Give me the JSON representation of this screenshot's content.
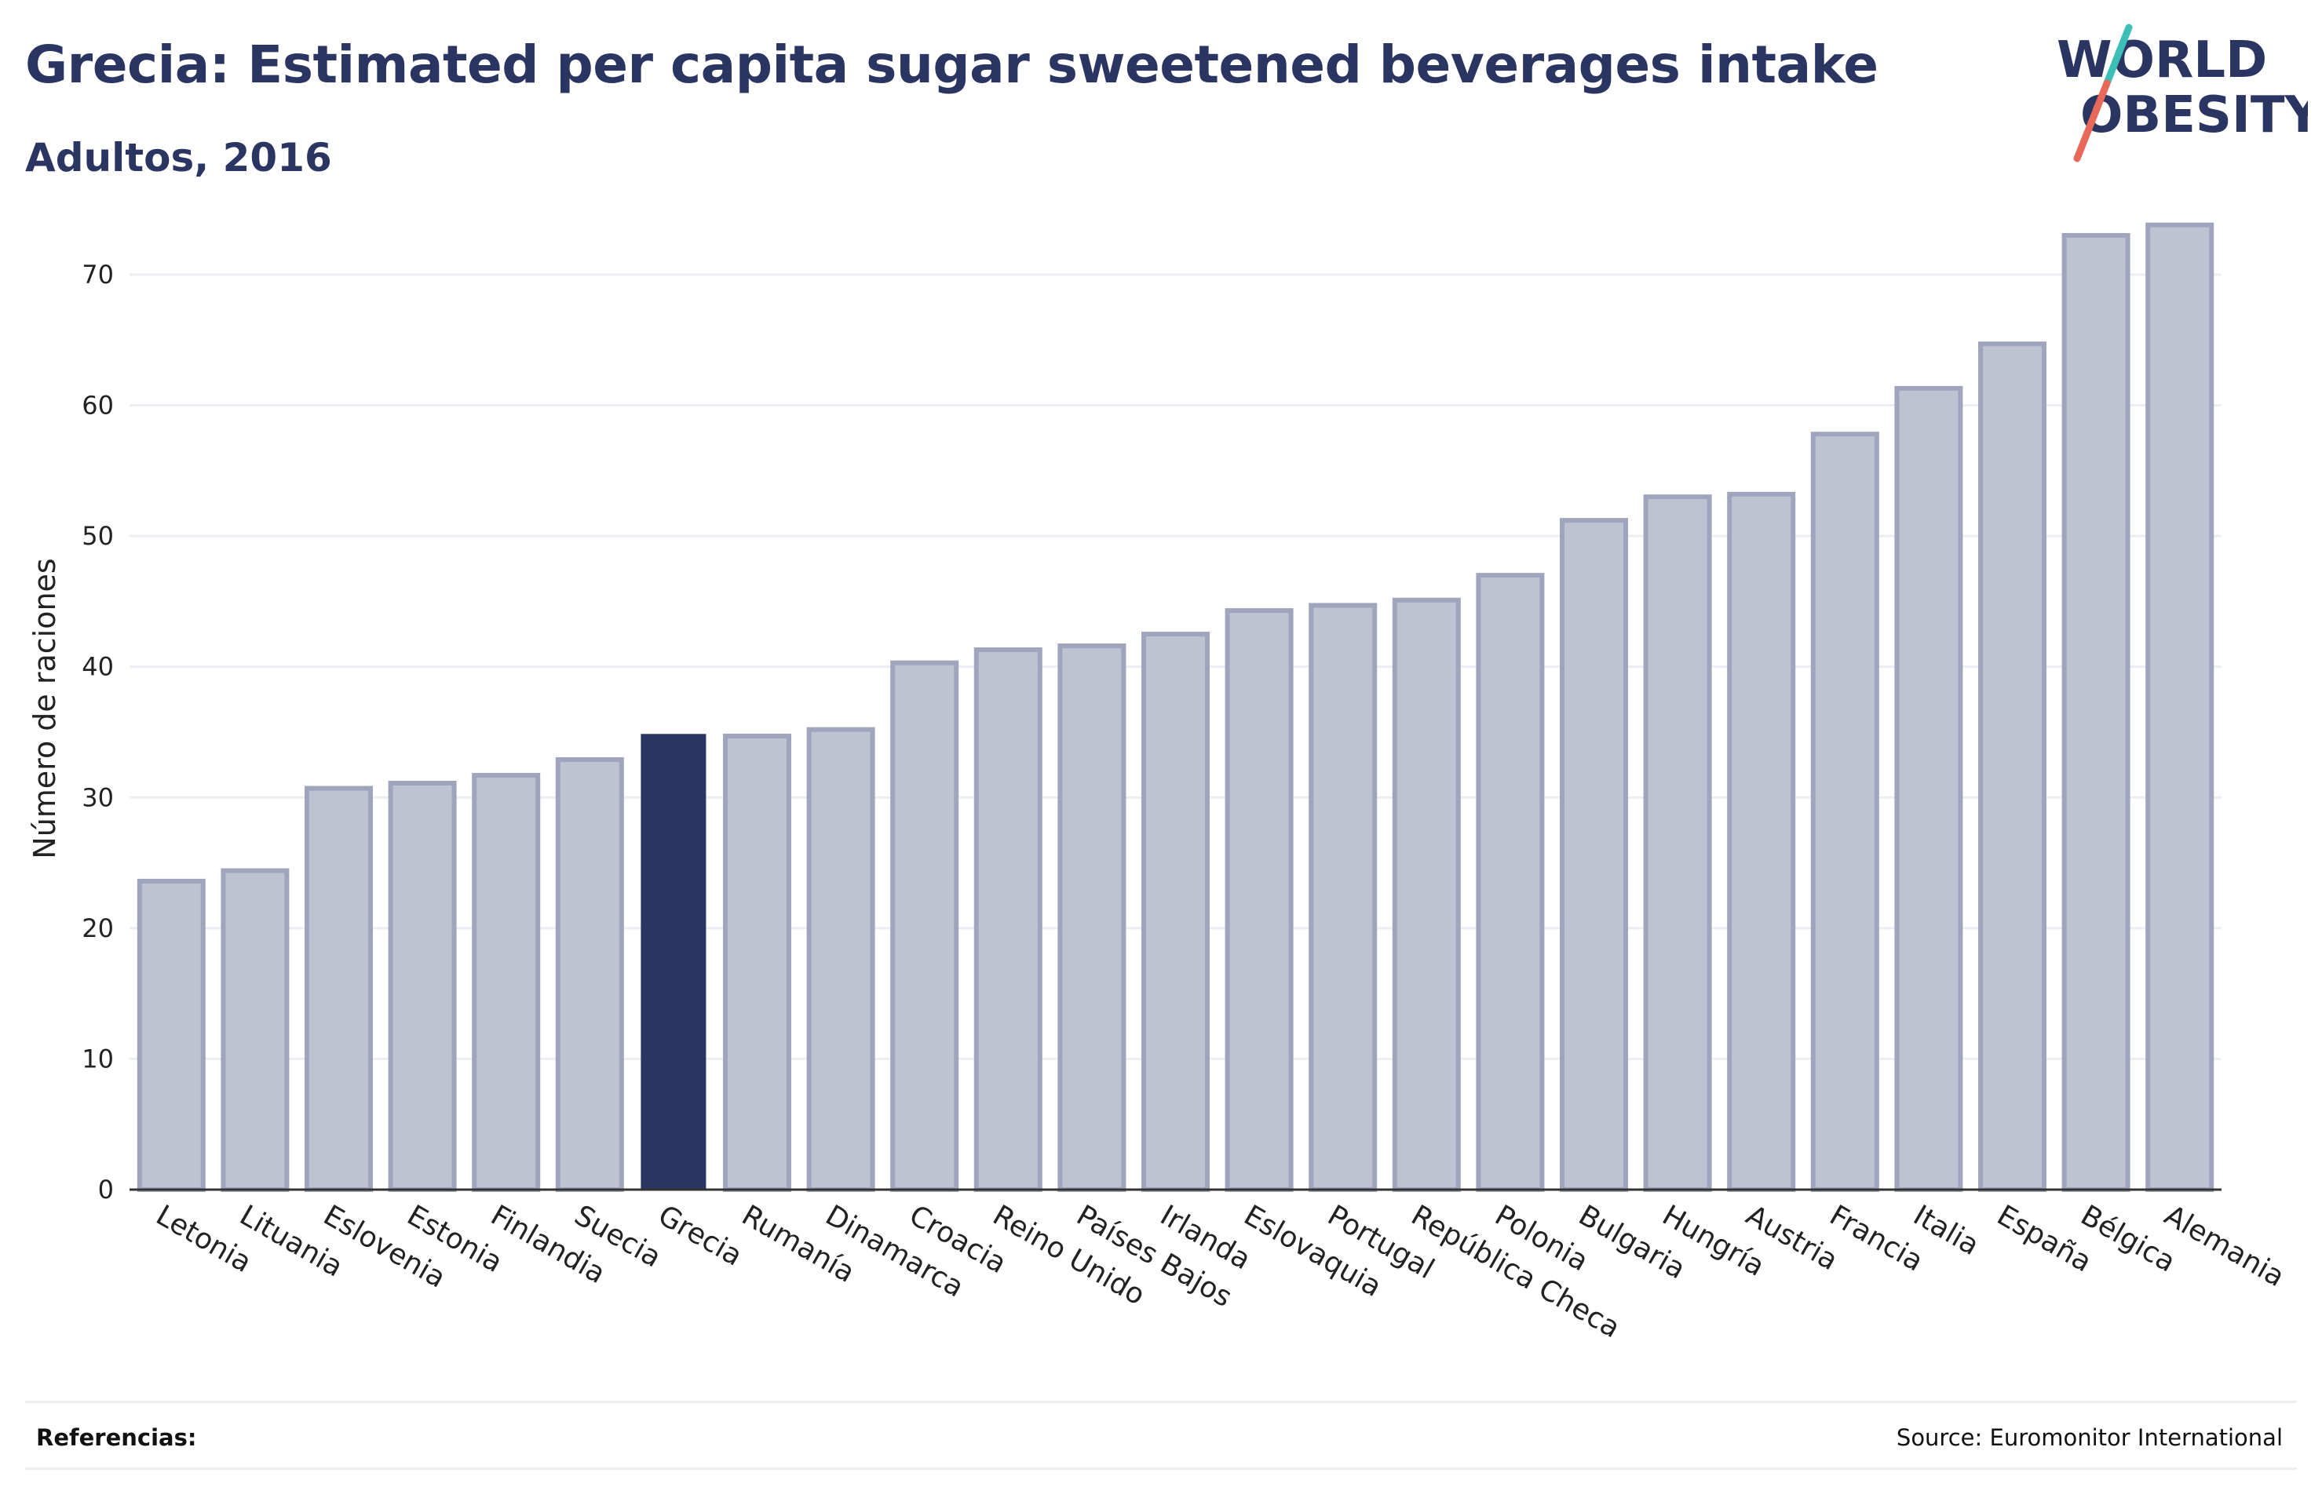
{
  "header": {
    "title": "Grecia: Estimated per capita sugar sweetened beverages intake",
    "subtitle": "Adultos, 2016"
  },
  "logo": {
    "line1": "WORLD",
    "line2": "OBESITY",
    "slash_top_color": "#3dbfb8",
    "slash_bottom_color": "#e8685a"
  },
  "footer": {
    "references_label": "Referencias:",
    "source": "Source: Euromonitor International"
  },
  "colors": {
    "bar_fill": "#bfc2d0",
    "bar_stroke": "#9fa5bc",
    "highlight_fill": "#2b3562",
    "grid": "#eceef3",
    "axis": "#333333"
  },
  "chart_data": {
    "type": "bar",
    "ylabel": "Número de raciones",
    "ylim": [
      0,
      76
    ],
    "yticks": [
      0,
      10,
      20,
      30,
      40,
      50,
      60,
      70
    ],
    "grid": true,
    "highlight": "Grecia",
    "categories": [
      "Letonia",
      "Lituania",
      "Eslovenia",
      "Estonia",
      "Finlandia",
      "Suecia",
      "Grecia",
      "Rumanía",
      "Dinamarca",
      "Croacia",
      "Reino Unido",
      "Países Bajos",
      "Irlanda",
      "Eslovaquia",
      "Portugal",
      "República Checa",
      "Polonia",
      "Bulgaria",
      "Hungría",
      "Austria",
      "Francia",
      "Italia",
      "España",
      "Bélgica",
      "Alemania"
    ],
    "values": [
      23.6,
      24.4,
      30.7,
      31.1,
      31.7,
      32.9,
      34.8,
      34.7,
      35.2,
      40.3,
      41.3,
      41.6,
      42.5,
      44.3,
      44.7,
      45.1,
      47.0,
      51.2,
      53.0,
      53.2,
      57.8,
      61.3,
      64.7,
      73.0,
      73.8
    ]
  }
}
